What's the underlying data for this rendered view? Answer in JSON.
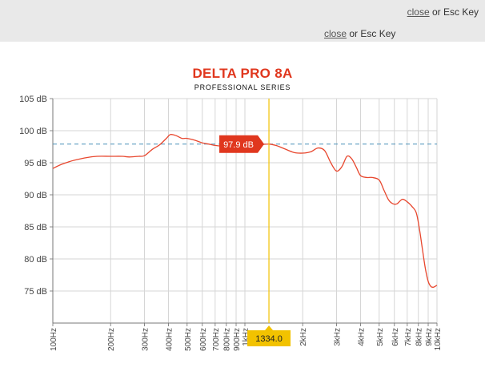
{
  "header": {
    "close_link": "close",
    "close_suffix": " or Esc Key"
  },
  "chart_data": {
    "type": "line",
    "title": "DELTA PRO 8A",
    "subtitle": "PROFESSIONAL SERIES",
    "xscale": "log",
    "xlim": [
      100,
      10000
    ],
    "ylim": [
      70,
      105
    ],
    "yticks": [
      75,
      80,
      85,
      90,
      95,
      100,
      105
    ],
    "ytick_labels": [
      "75 dB",
      "80 dB",
      "85 dB",
      "90 dB",
      "95 dB",
      "100 dB",
      "105 dB"
    ],
    "xticks": [
      100,
      200,
      300,
      400,
      500,
      600,
      700,
      800,
      900,
      1000,
      2000,
      3000,
      4000,
      5000,
      6000,
      7000,
      8000,
      9000,
      10000
    ],
    "xtick_labels": [
      "100Hz",
      "200Hz",
      "300Hz",
      "400Hz",
      "500Hz",
      "600Hz",
      "700Hz",
      "800Hz",
      "900Hz",
      "1kHz",
      "2kHz",
      "3kHz",
      "4kHz",
      "5kHz",
      "6kHz",
      "7kHz",
      "8kHz",
      "9kHz",
      "10kHz"
    ],
    "grid": true,
    "reference_level": 97.9,
    "cursor": {
      "x": 1334.0,
      "x_label": "1334.0",
      "y_label": "97.9 dB"
    },
    "colors": {
      "line": "#e8472e",
      "cursor": "#f2c200",
      "reference": "#4a90b8",
      "tooltip": "#e0371e"
    },
    "series": [
      {
        "x": [
          100,
          110,
          120,
          130,
          150,
          170,
          200,
          230,
          250,
          280,
          300,
          330,
          360,
          390,
          410,
          440,
          470,
          500,
          550,
          600,
          650,
          700,
          750,
          800,
          900,
          1000,
          1100,
          1200,
          1334,
          1450,
          1600,
          1800,
          2000,
          2200,
          2400,
          2600,
          2800,
          3000,
          3200,
          3400,
          3600,
          3800,
          4000,
          4300,
          4600,
          5000,
          5300,
          5600,
          5900,
          6200,
          6600,
          7000,
          7400,
          7800,
          8100,
          8400,
          8700,
          9000,
          9300,
          9600,
          10000
        ],
        "y": [
          94.1,
          94.7,
          95.1,
          95.4,
          95.8,
          96.0,
          96.0,
          96.0,
          95.9,
          96.0,
          96.1,
          97.1,
          97.8,
          98.8,
          99.4,
          99.2,
          98.8,
          98.8,
          98.5,
          98.1,
          97.9,
          97.7,
          97.6,
          97.6,
          97.5,
          97.6,
          97.7,
          97.8,
          97.9,
          97.7,
          97.2,
          96.6,
          96.5,
          96.7,
          97.3,
          96.9,
          95.0,
          93.7,
          94.4,
          96.0,
          95.6,
          94.3,
          93.0,
          92.7,
          92.7,
          92.3,
          90.7,
          89.2,
          88.6,
          88.6,
          89.3,
          88.9,
          88.2,
          87.2,
          84.7,
          81.5,
          78.5,
          76.5,
          75.7,
          75.6,
          75.9
        ]
      }
    ]
  }
}
